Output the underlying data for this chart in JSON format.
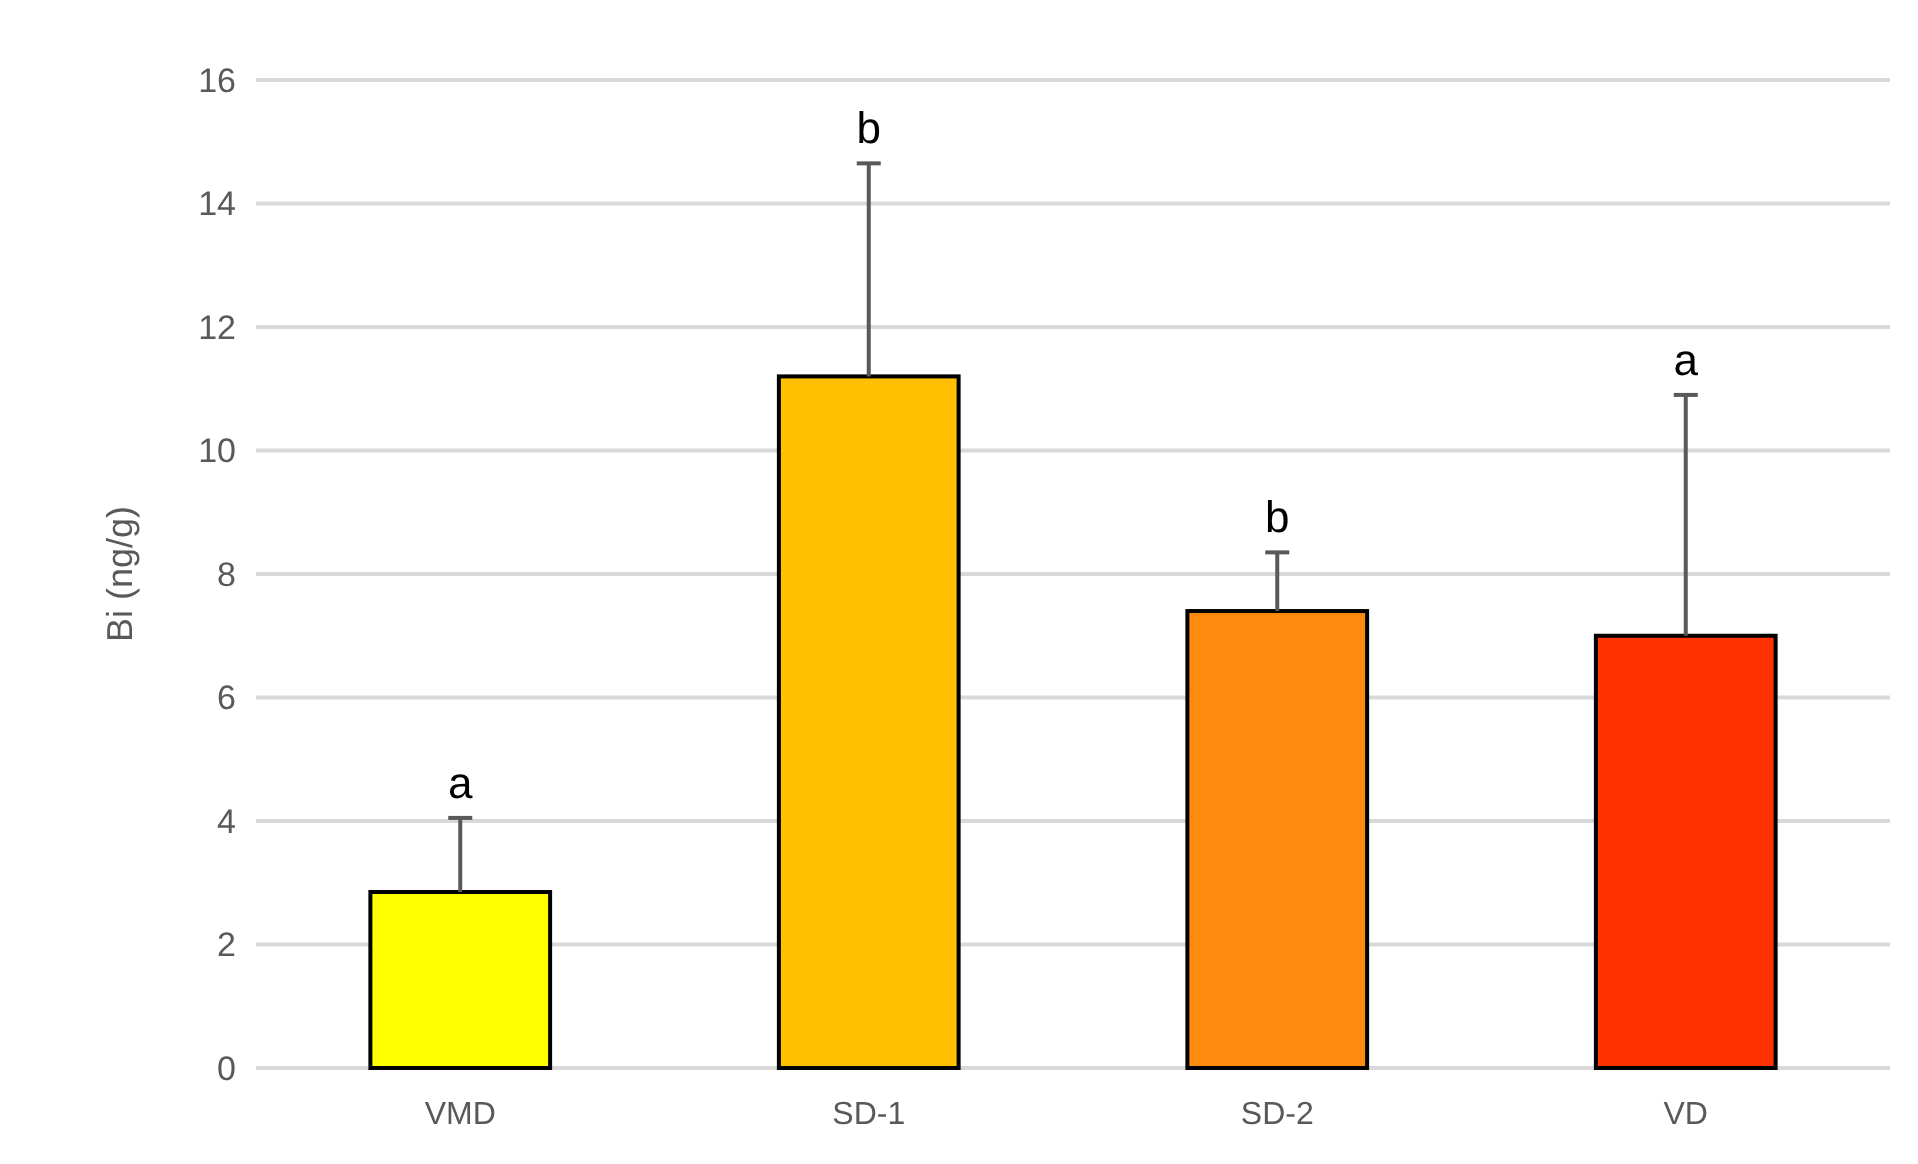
{
  "chart_data": {
    "type": "bar",
    "ylabel": "Bi (ng/g)",
    "categories": [
      "VMD",
      "SD-1",
      "SD-2",
      "VD"
    ],
    "values": [
      2.85,
      11.2,
      7.4,
      7.0
    ],
    "colors": [
      "#ffff00",
      "#ffc000",
      "#fd8b0f",
      "#ff3300"
    ],
    "errors": [
      [
        2.85,
        4.05
      ],
      [
        11.2,
        14.65
      ],
      [
        7.4,
        8.35
      ],
      [
        7.0,
        10.9
      ]
    ],
    "ylim": [
      0,
      16
    ],
    "yticks": [
      0,
      2,
      4,
      6,
      8,
      10,
      12,
      14,
      16
    ],
    "grid": "y",
    "annotations": [
      {
        "text": "a",
        "x": "VMD",
        "y": 4.05
      },
      {
        "text": "b",
        "x": "SD-1",
        "y": 14.65
      },
      {
        "text": "b",
        "x": "SD-2",
        "y": 8.35
      },
      {
        "text": "a",
        "x": "VD",
        "y": 10.9
      }
    ]
  }
}
